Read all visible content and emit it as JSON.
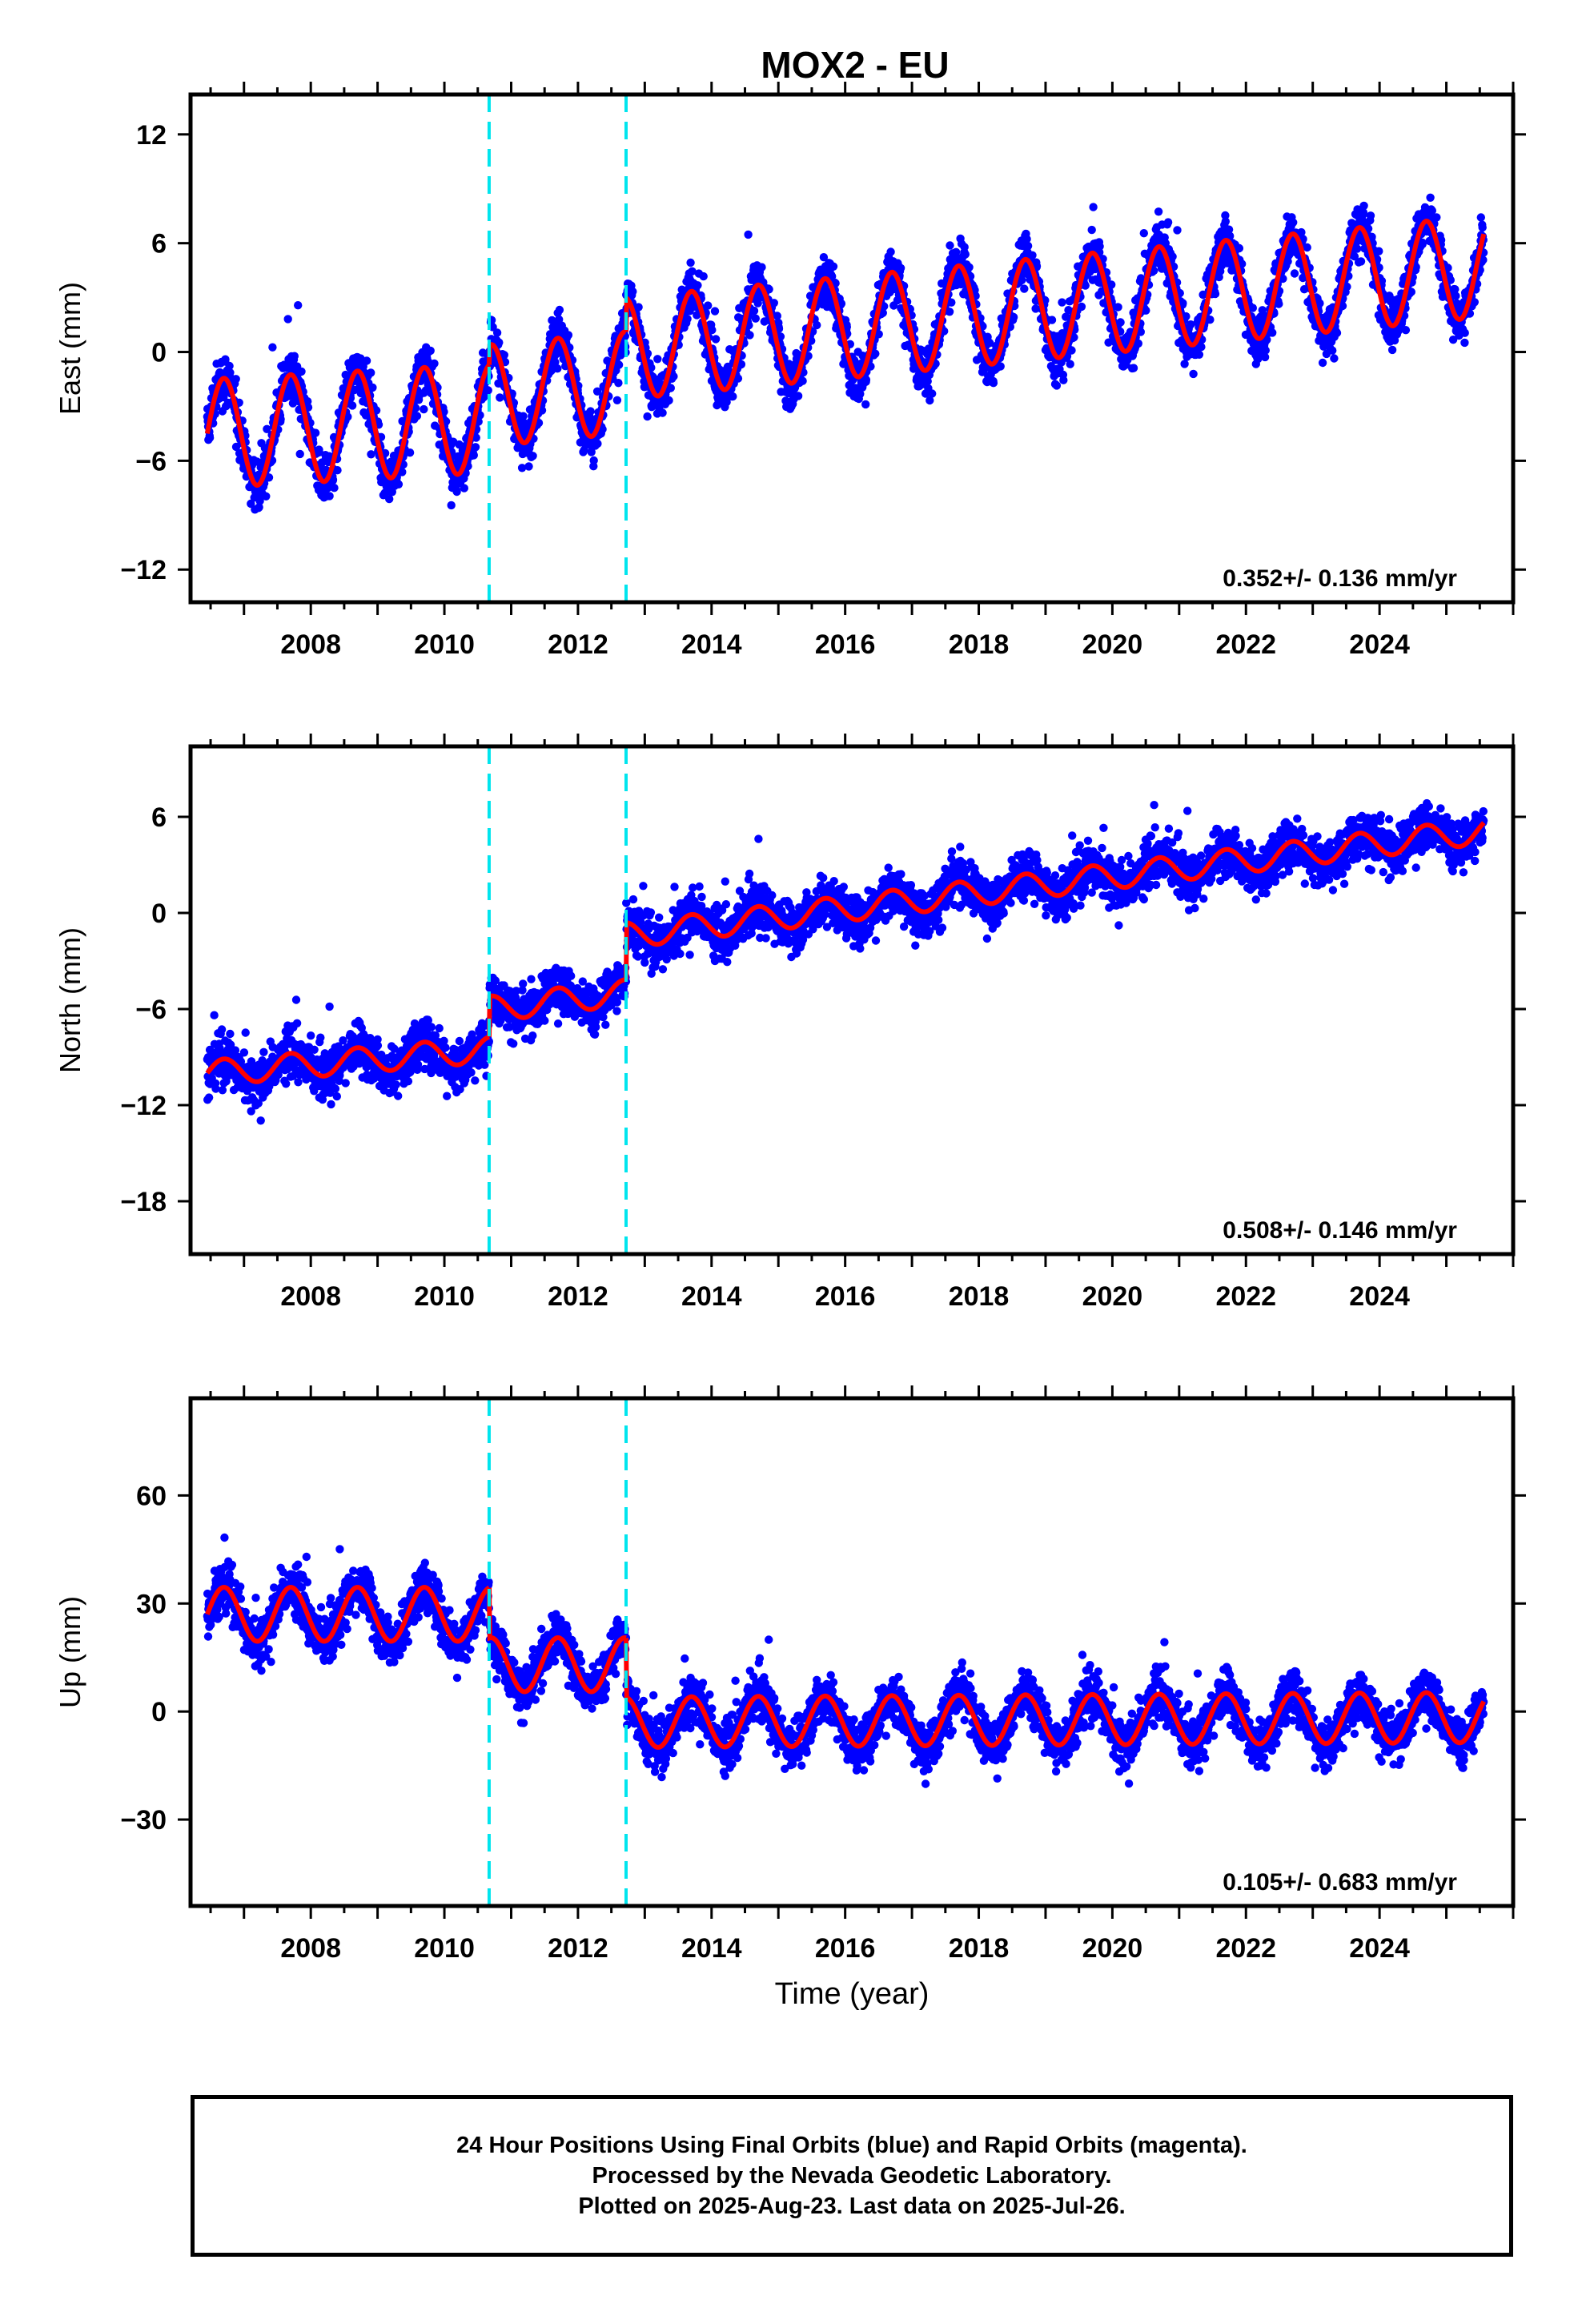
{
  "title": "MOX2 - EU",
  "colors": {
    "points": "#0000ff",
    "model": "#ff0000",
    "offsets": "#00e5ee",
    "frame": "#000000"
  },
  "chart_data": [
    {
      "type": "scatter",
      "ylabel": "East (mm)",
      "xlabel": "",
      "xlim": [
        2006.2,
        2026.0
      ],
      "ylim": [
        -13.8,
        14.2
      ],
      "yticks": [
        -12,
        -6,
        0,
        6,
        12
      ],
      "xticks": [
        2008,
        2010,
        2012,
        2014,
        2016,
        2018,
        2020,
        2022,
        2024
      ],
      "offsets": [
        2010.67,
        2012.72
      ],
      "velocity": "0.352+/- 0.136 mm/yr",
      "model": {
        "segments": [
          {
            "start": 2006.45,
            "end": 2010.67,
            "a": -4.5,
            "rate": 0.2,
            "amp": 3.0
          },
          {
            "start": 2010.67,
            "end": 2012.72,
            "a": -2.4,
            "rate": 0.352,
            "amp": 2.8
          },
          {
            "start": 2012.72,
            "end": 2025.56,
            "a": 0.2,
            "rate": 0.352,
            "amp": 2.8
          }
        ],
        "phase": 0.45
      },
      "points": {
        "spread": 1.8,
        "date_range": [
          2006.45,
          2025.56
        ]
      }
    },
    {
      "type": "scatter",
      "ylabel": "North (mm)",
      "xlabel": "",
      "xlim": [
        2006.2,
        2026.0
      ],
      "ylim": [
        -21.3,
        10.4
      ],
      "yticks": [
        -18,
        -12,
        -6,
        0,
        6
      ],
      "xticks": [
        2008,
        2010,
        2012,
        2014,
        2016,
        2018,
        2020,
        2022,
        2024
      ],
      "offsets": [
        2010.67,
        2012.72
      ],
      "velocity": "0.508+/- 0.146 mm/yr",
      "model": {
        "segments": [
          {
            "start": 2006.45,
            "end": 2010.67,
            "a": -10.0,
            "rate": 0.35,
            "amp": 0.8
          },
          {
            "start": 2010.67,
            "end": 2012.72,
            "a": -6.0,
            "rate": 0.508,
            "amp": 0.8
          },
          {
            "start": 2012.72,
            "end": 2025.56,
            "a": -1.4,
            "rate": 0.508,
            "amp": 0.8
          }
        ],
        "phase": 0.45
      },
      "points": {
        "spread": 1.9,
        "date_range": [
          2006.45,
          2025.56
        ]
      }
    },
    {
      "type": "scatter",
      "ylabel": "Up (mm)",
      "xlabel": "Time (year)",
      "xlim": [
        2006.2,
        2026.0
      ],
      "ylim": [
        -54,
        87
      ],
      "yticks": [
        -30,
        0,
        30,
        60
      ],
      "xticks": [
        2008,
        2010,
        2012,
        2014,
        2016,
        2018,
        2020,
        2022,
        2024
      ],
      "offsets": [
        2010.67,
        2012.72
      ],
      "velocity": "0.105+/- 0.683 mm/yr",
      "model": {
        "segments": [
          {
            "start": 2006.45,
            "end": 2010.67,
            "a": 27,
            "rate": 0.0,
            "amp": 7.5
          },
          {
            "start": 2010.67,
            "end": 2012.72,
            "a": 13,
            "rate": 0.0,
            "amp": 7.5
          },
          {
            "start": 2012.72,
            "end": 2025.56,
            "a": -3,
            "rate": 0.105,
            "amp": 7.0
          }
        ],
        "phase": 0.45
      },
      "points": {
        "spread": 8.5,
        "date_range": [
          2006.45,
          2025.56
        ]
      }
    }
  ],
  "footer": {
    "line1": "24 Hour Positions Using Final Orbits (blue) and Rapid Orbits (magenta).",
    "line2": "Processed by the Nevada Geodetic Laboratory.",
    "line3": "Plotted on 2025-Aug-23. Last data on 2025-Jul-26."
  }
}
